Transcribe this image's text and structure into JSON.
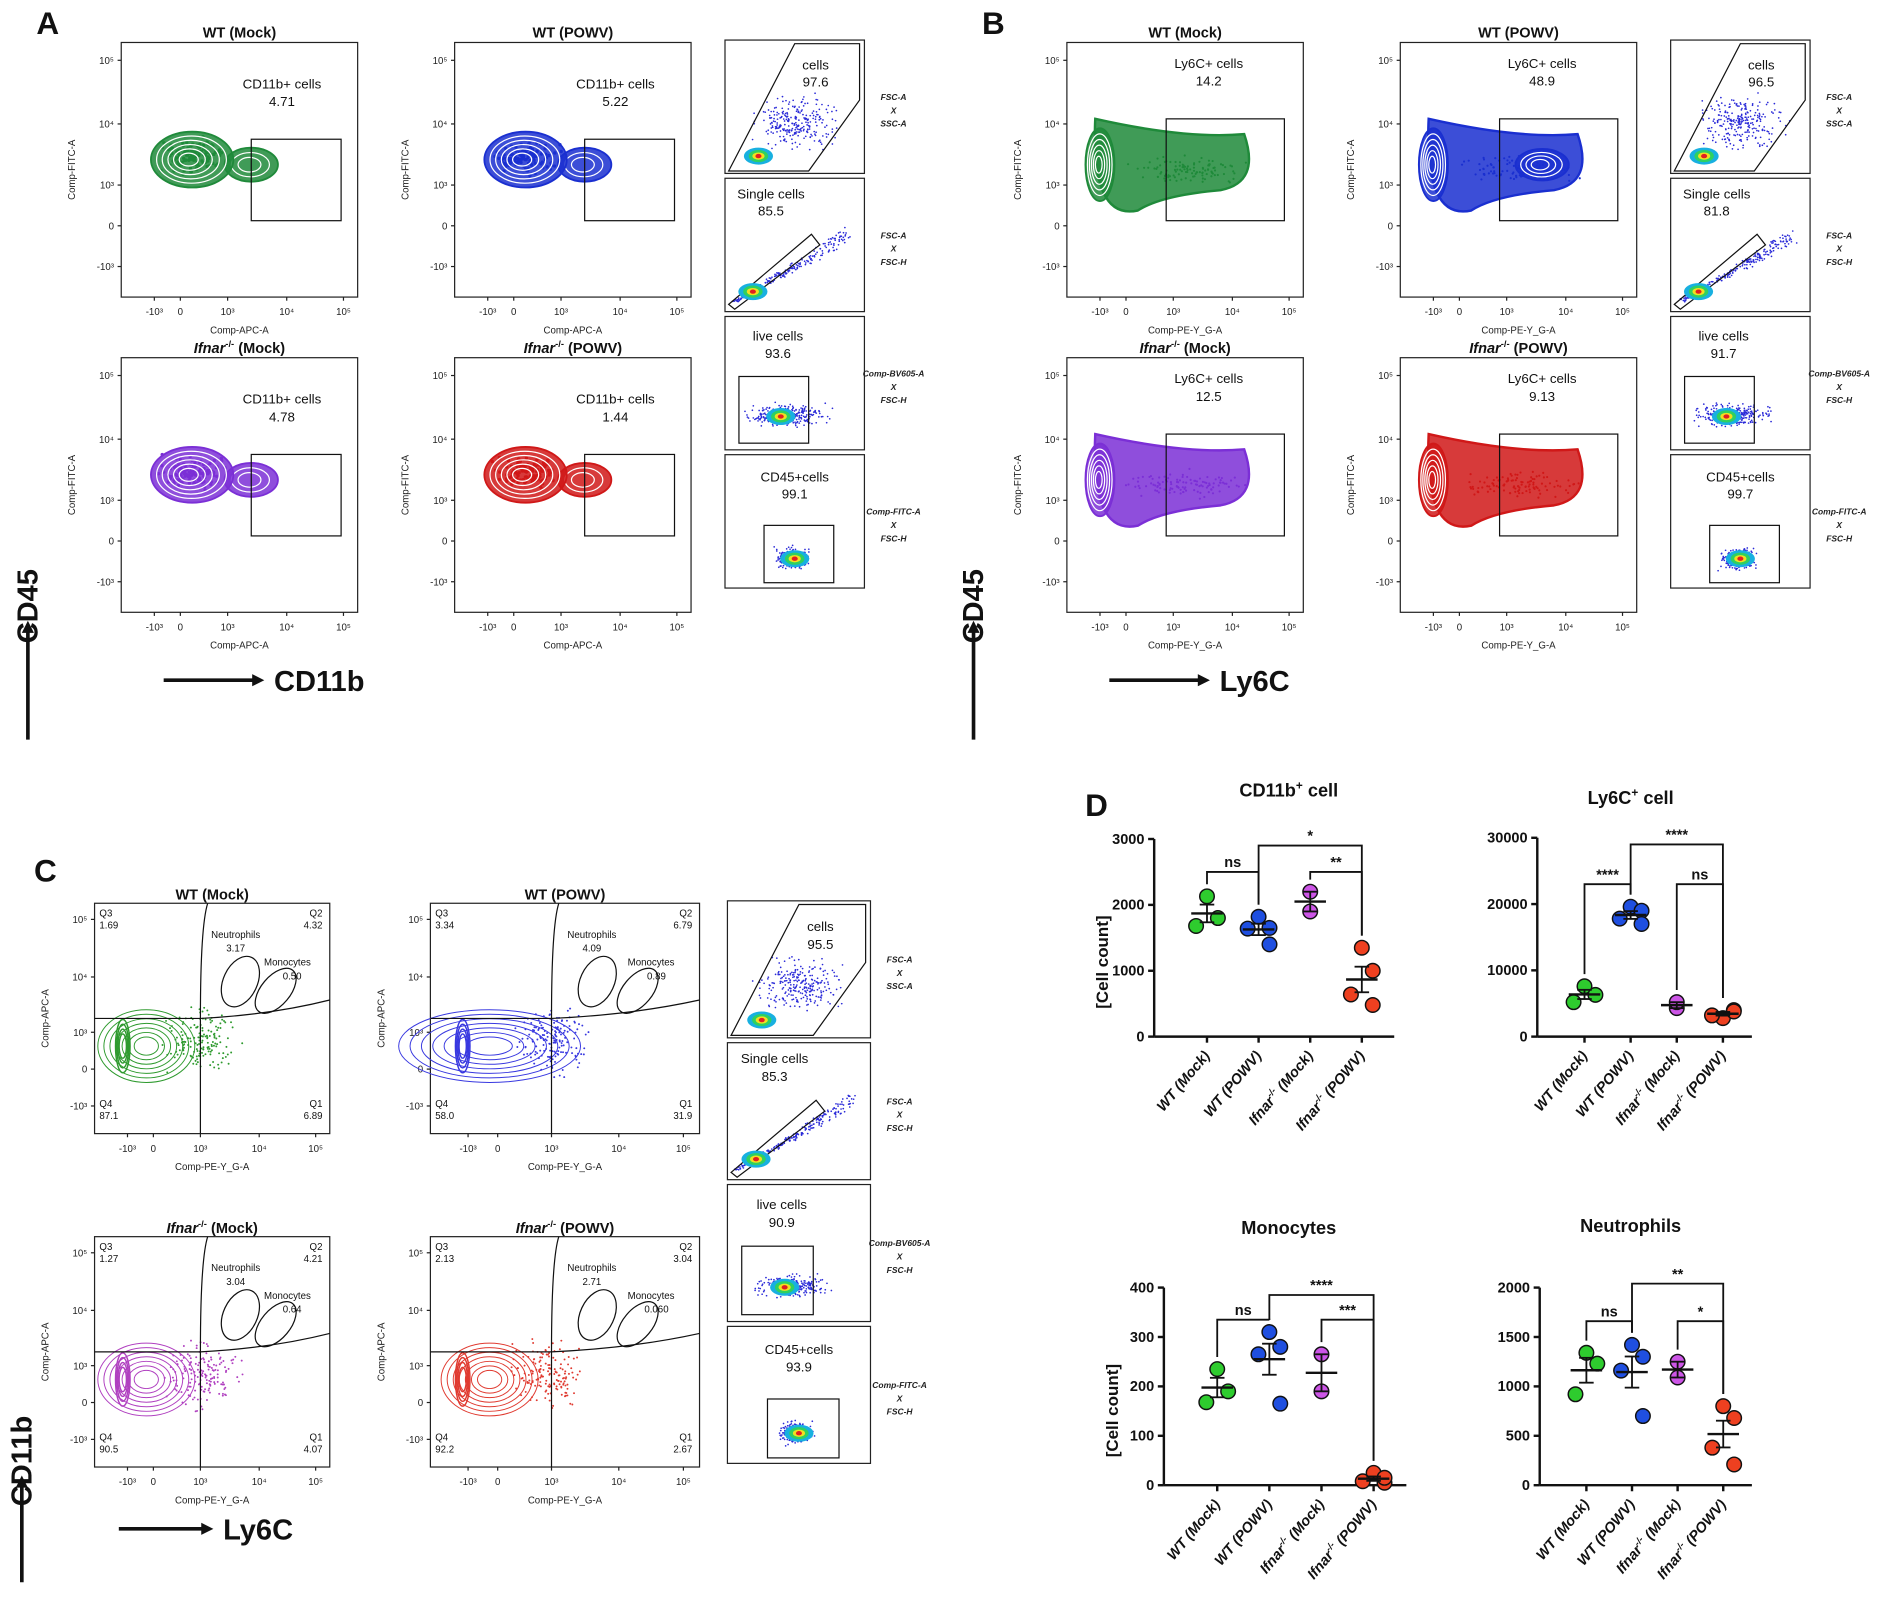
{
  "flow_axes": {
    "y_ticks": [
      "10⁵",
      "10⁴",
      "10³",
      "0",
      "-10³"
    ],
    "x_ticks": [
      "-10³",
      "0",
      "10³",
      "10⁴",
      "10⁵"
    ]
  },
  "panel_A": {
    "label": "A",
    "y_marker": "CD45",
    "x_marker": "CD11b",
    "xlabel": "Comp-APC-A",
    "ylabel": "Comp-FITC-A",
    "plots": [
      {
        "title": {
          "main": "WT",
          "sup": "",
          "rest": " (Mock)"
        },
        "gate_label": "CD11b+ cells",
        "gate_value": "4.71",
        "color": "#1f8a3a"
      },
      {
        "title": {
          "main": "WT",
          "sup": "",
          "rest": " (POWV)"
        },
        "gate_label": "CD11b+ cells",
        "gate_value": "5.22",
        "color": "#1a2fd0"
      },
      {
        "title": {
          "main": "Ifnar",
          "sup": "-/-",
          "rest": " (Mock)"
        },
        "gate_label": "CD11b+ cells",
        "gate_value": "4.78",
        "color": "#7b2fd6"
      },
      {
        "title": {
          "main": "Ifnar",
          "sup": "-/-",
          "rest": " (POWV)"
        },
        "gate_label": "CD11b+ cells",
        "gate_value": "1.44",
        "color": "#d01818"
      }
    ],
    "gating": [
      {
        "name": "cells",
        "value": "97.6",
        "axes": [
          "FSC-A",
          "X",
          "SSC-A"
        ]
      },
      {
        "name": "Single cells",
        "value": "85.5",
        "axes": [
          "FSC-A",
          "X",
          "FSC-H"
        ]
      },
      {
        "name": "live cells",
        "value": "93.6",
        "axes": [
          "Comp-BV605-A",
          "X",
          "FSC-H"
        ]
      },
      {
        "name": "CD45+cells",
        "value": "99.1",
        "axes": [
          "Comp-FITC-A",
          "X",
          "FSC-H"
        ]
      }
    ]
  },
  "panel_B": {
    "label": "B",
    "y_marker": "CD45",
    "x_marker": "Ly6C",
    "xlabel": "Comp-PE-Y_G-A",
    "ylabel": "Comp-FITC-A",
    "plots": [
      {
        "title": {
          "main": "WT",
          "sup": "",
          "rest": " (Mock)"
        },
        "gate_label": "Ly6C+ cells",
        "gate_value": "14.2",
        "color": "#1f8a3a"
      },
      {
        "title": {
          "main": "WT",
          "sup": "",
          "rest": " (POWV)"
        },
        "gate_label": "Ly6C+ cells",
        "gate_value": "48.9",
        "color": "#1a2fd0"
      },
      {
        "title": {
          "main": "Ifnar",
          "sup": "-/-",
          "rest": " (Mock)"
        },
        "gate_label": "Ly6C+ cells",
        "gate_value": "12.5",
        "color": "#7b2fd6"
      },
      {
        "title": {
          "main": "Ifnar",
          "sup": "-/-",
          "rest": " (POWV)"
        },
        "gate_label": "Ly6C+ cells",
        "gate_value": "9.13",
        "color": "#d01818"
      }
    ],
    "gating": [
      {
        "name": "cells",
        "value": "96.5",
        "axes": [
          "FSC-A",
          "X",
          "SSC-A"
        ]
      },
      {
        "name": "Single cells",
        "value": "81.8",
        "axes": [
          "FSC-A",
          "X",
          "FSC-H"
        ]
      },
      {
        "name": "live cells",
        "value": "91.7",
        "axes": [
          "Comp-BV605-A",
          "X",
          "FSC-H"
        ]
      },
      {
        "name": "CD45+cells",
        "value": "99.7",
        "axes": [
          "Comp-FITC-A",
          "X",
          "FSC-H"
        ]
      }
    ]
  },
  "panel_C": {
    "label": "C",
    "y_marker": "CD11b",
    "x_marker": "Ly6C",
    "xlabel": "Comp-PE-Y_G-A",
    "ylabel": "Comp-APC-A",
    "plots": [
      {
        "title": {
          "main": "WT",
          "sup": "",
          "rest": " (Mock)"
        },
        "color": "#2e9a2e",
        "q": {
          "Q1": "6.89",
          "Q2": "4.32",
          "Q3": "1.69",
          "Q4": "87.1"
        },
        "neutrophils_label": "Neutrophils",
        "neutrophils": "3.17",
        "monocytes_label": "Monocytes",
        "monocytes": "0.50"
      },
      {
        "title": {
          "main": "WT",
          "sup": "",
          "rest": " (POWV)"
        },
        "color": "#3838e0",
        "q": {
          "Q1": "31.9",
          "Q2": "6.79",
          "Q3": "3.34",
          "Q4": "58.0"
        },
        "neutrophils_label": "Neutrophils",
        "neutrophils": "4.09",
        "monocytes_label": "Monocytes",
        "monocytes": "0.89"
      },
      {
        "title": {
          "main": "Ifnar",
          "sup": "-/-",
          "rest": " (Mock)"
        },
        "color": "#b040c0",
        "q": {
          "Q1": "4.07",
          "Q2": "4.21",
          "Q3": "1.27",
          "Q4": "90.5"
        },
        "neutrophils_label": "Neutrophils",
        "neutrophils": "3.04",
        "monocytes_label": "Monocytes",
        "monocytes": "0.64"
      },
      {
        "title": {
          "main": "Ifnar",
          "sup": "-/-",
          "rest": " (POWV)"
        },
        "color": "#e03a30",
        "q": {
          "Q1": "2.67",
          "Q2": "3.04",
          "Q3": "2.13",
          "Q4": "92.2"
        },
        "neutrophils_label": "Neutrophils",
        "neutrophils": "2.71",
        "monocytes_label": "Monocytes",
        "monocytes": "0.060"
      }
    ],
    "gating": [
      {
        "name": "cells",
        "value": "95.5",
        "axes": [
          "FSC-A",
          "X",
          "SSC-A"
        ]
      },
      {
        "name": "Single cells",
        "value": "85.3",
        "axes": [
          "FSC-A",
          "X",
          "FSC-H"
        ]
      },
      {
        "name": "live cells",
        "value": "90.9",
        "axes": [
          "Comp-BV605-A",
          "X",
          "FSC-H"
        ]
      },
      {
        "name": "CD45+cells",
        "value": "93.9",
        "axes": [
          "Comp-FITC-A",
          "X",
          "FSC-H"
        ]
      }
    ]
  },
  "panel_D": {
    "label": "D"
  },
  "chart_data": [
    {
      "type": "scatter",
      "title": {
        "main": "CD11b",
        "sup": "+",
        "rest": " cell"
      },
      "ylabel": "[Cell count]",
      "ylim": [
        0,
        3000
      ],
      "yticks": [
        "0",
        "1000",
        "2000",
        "3000"
      ],
      "categories": [
        {
          "main": "WT",
          "sup": "",
          "rest": " (Mock)"
        },
        {
          "main": "WT",
          "sup": "",
          "rest": " (POWV)"
        },
        {
          "main": "Ifnar",
          "sup": "-/-",
          "rest": " (Mock)"
        },
        {
          "main": "Ifnar",
          "sup": "-/-",
          "rest": " (POWV)"
        }
      ],
      "series": [
        {
          "name": "WT (Mock)",
          "color": "#2ecc2e",
          "values": [
            2130,
            1800,
            1680
          ]
        },
        {
          "name": "WT (POWV)",
          "color": "#1f4fe0",
          "values": [
            1820,
            1650,
            1640,
            1400
          ]
        },
        {
          "name": "Ifnar-/- (Mock)",
          "color": "#cc55e6",
          "values": [
            2200,
            1900
          ]
        },
        {
          "name": "Ifnar-/- (POWV)",
          "color": "#ee4020",
          "values": [
            1350,
            1000,
            640,
            480
          ]
        }
      ],
      "comparisons": [
        {
          "from": 0,
          "to": 1,
          "y": 2500,
          "label": "ns"
        },
        {
          "from": 1,
          "to": 3,
          "y": 2900,
          "label": "*"
        },
        {
          "from": 2,
          "to": 3,
          "y": 2500,
          "label": "**"
        }
      ]
    },
    {
      "type": "scatter",
      "title": {
        "main": "Ly6C",
        "sup": "+",
        "rest": " cell"
      },
      "ylabel": "",
      "ylim": [
        0,
        30000
      ],
      "yticks": [
        "0",
        "10000",
        "20000",
        "30000"
      ],
      "categories": [
        {
          "main": "WT",
          "sup": "",
          "rest": " (Mock)"
        },
        {
          "main": "WT",
          "sup": "",
          "rest": " (POWV)"
        },
        {
          "main": "Ifnar",
          "sup": "-/-",
          "rest": " (Mock)"
        },
        {
          "main": "Ifnar",
          "sup": "-/-",
          "rest": " (POWV)"
        }
      ],
      "series": [
        {
          "name": "WT (Mock)",
          "color": "#2ecc2e",
          "values": [
            7600,
            6300,
            5200
          ]
        },
        {
          "name": "WT (POWV)",
          "color": "#1f4fe0",
          "values": [
            19600,
            19000,
            17800,
            17000
          ]
        },
        {
          "name": "Ifnar-/- (Mock)",
          "color": "#cc55e6",
          "values": [
            4300,
            5200
          ]
        },
        {
          "name": "Ifnar-/- (POWV)",
          "color": "#ee4020",
          "values": [
            2800,
            4000,
            3200,
            3800
          ]
        }
      ],
      "comparisons": [
        {
          "from": 0,
          "to": 1,
          "y": 23000,
          "label": "****"
        },
        {
          "from": 1,
          "to": 3,
          "y": 29000,
          "label": "****"
        },
        {
          "from": 2,
          "to": 3,
          "y": 23000,
          "label": "ns"
        }
      ]
    },
    {
      "type": "scatter",
      "title": {
        "main": "Monocytes",
        "sup": "",
        "rest": ""
      },
      "ylabel": "[Cell count]",
      "ylim": [
        0,
        400
      ],
      "yticks": [
        "0",
        "100",
        "200",
        "300",
        "400"
      ],
      "categories": [
        {
          "main": "WT",
          "sup": "",
          "rest": " (Mock)"
        },
        {
          "main": "WT",
          "sup": "",
          "rest": " (POWV)"
        },
        {
          "main": "Ifnar",
          "sup": "-/-",
          "rest": " (Mock)"
        },
        {
          "main": "Ifnar",
          "sup": "-/-",
          "rest": " (POWV)"
        }
      ],
      "series": [
        {
          "name": "WT (Mock)",
          "color": "#2ecc2e",
          "values": [
            235,
            190,
            168
          ]
        },
        {
          "name": "WT (POWV)",
          "color": "#1f4fe0",
          "values": [
            310,
            280,
            265,
            165
          ]
        },
        {
          "name": "Ifnar-/- (Mock)",
          "color": "#cc55e6",
          "values": [
            265,
            190
          ]
        },
        {
          "name": "Ifnar-/- (POWV)",
          "color": "#ee4020",
          "values": [
            25,
            5,
            8,
            15
          ]
        }
      ],
      "comparisons": [
        {
          "from": 0,
          "to": 1,
          "y": 335,
          "label": "ns"
        },
        {
          "from": 1,
          "to": 3,
          "y": 385,
          "label": "****"
        },
        {
          "from": 2,
          "to": 3,
          "y": 335,
          "label": "***"
        }
      ]
    },
    {
      "type": "scatter",
      "title": {
        "main": "Neutrophils",
        "sup": "",
        "rest": ""
      },
      "ylabel": "",
      "ylim": [
        0,
        2000
      ],
      "yticks": [
        "0",
        "500",
        "1000",
        "1500",
        "2000"
      ],
      "categories": [
        {
          "main": "WT",
          "sup": "",
          "rest": " (Mock)"
        },
        {
          "main": "WT",
          "sup": "",
          "rest": " (POWV)"
        },
        {
          "main": "Ifnar",
          "sup": "-/-",
          "rest": " (Mock)"
        },
        {
          "main": "Ifnar",
          "sup": "-/-",
          "rest": " (POWV)"
        }
      ],
      "series": [
        {
          "name": "WT (Mock)",
          "color": "#2ecc2e",
          "values": [
            1340,
            1230,
            920
          ]
        },
        {
          "name": "WT (POWV)",
          "color": "#1f4fe0",
          "values": [
            1420,
            1300,
            1160,
            700
          ]
        },
        {
          "name": "Ifnar-/- (Mock)",
          "color": "#cc55e6",
          "values": [
            1250,
            1090
          ]
        },
        {
          "name": "Ifnar-/- (POWV)",
          "color": "#ee4020",
          "values": [
            800,
            680,
            380,
            210
          ]
        }
      ],
      "comparisons": [
        {
          "from": 0,
          "to": 1,
          "y": 1660,
          "label": "ns"
        },
        {
          "from": 1,
          "to": 3,
          "y": 2040,
          "label": "**"
        },
        {
          "from": 2,
          "to": 3,
          "y": 1660,
          "label": "*"
        }
      ]
    }
  ]
}
